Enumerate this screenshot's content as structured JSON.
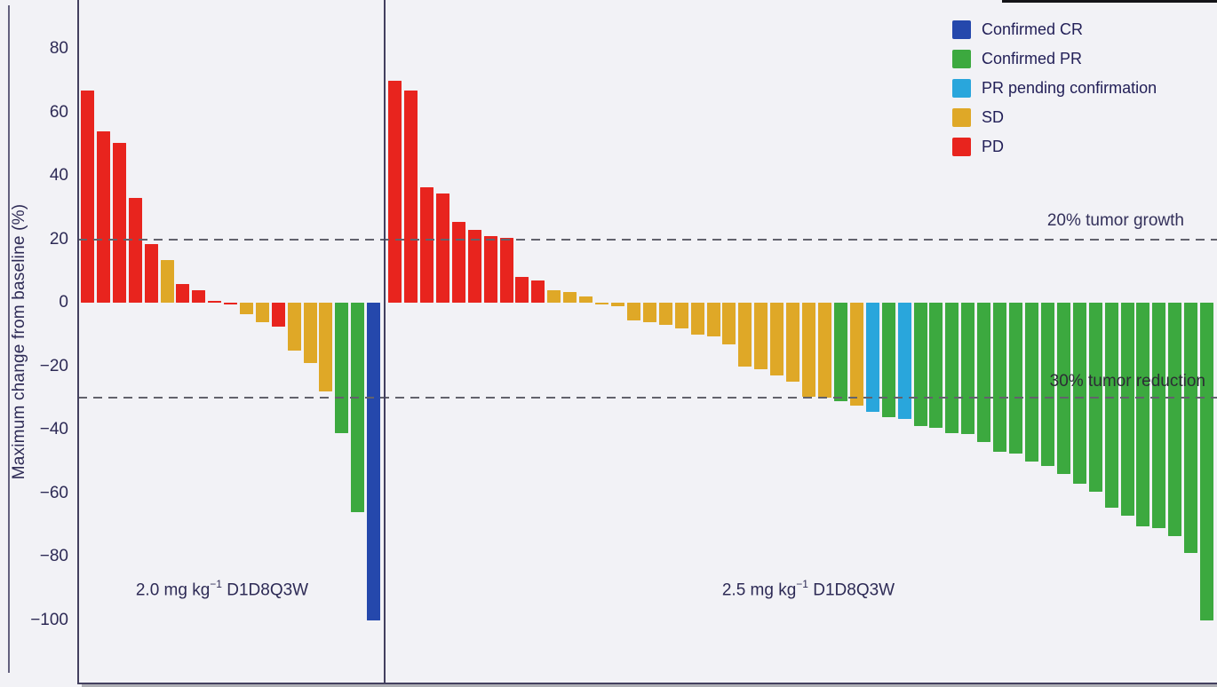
{
  "y_axis": {
    "label": "Maximum change from baseline (%)"
  },
  "annotations": {
    "growth_line_label": "20% tumor growth",
    "reduction_line_label": "30% tumor reduction"
  },
  "legend": {
    "items": [
      {
        "key": "CR",
        "label": "Confirmed CR",
        "color": "#2548ac"
      },
      {
        "key": "PR",
        "label": "Confirmed PR",
        "color": "#3ca93f"
      },
      {
        "key": "PRpending",
        "label": "PR pending confirmation",
        "color": "#29a6dc"
      },
      {
        "key": "SD",
        "label": "SD",
        "color": "#dfa827"
      },
      {
        "key": "PD",
        "label": "PD",
        "color": "#e8241e"
      }
    ]
  },
  "chart_data": {
    "type": "bar",
    "subtype": "waterfall-tumor-response",
    "title": "",
    "ylabel": "Maximum change from baseline (%)",
    "ylim": [
      -110,
      95
    ],
    "yticks": [
      80,
      60,
      40,
      20,
      0,
      -20,
      -40,
      -60,
      -80,
      -100
    ],
    "grid": false,
    "legend_position": "top-right",
    "reference_lines": [
      {
        "y": 20,
        "label": "20% tumor growth"
      },
      {
        "y": -30,
        "label": "30% tumor reduction"
      }
    ],
    "color_map": {
      "CR": "#2548ac",
      "PR": "#3ca93f",
      "PRpending": "#29a6dc",
      "SD": "#dfa827",
      "PD": "#e8241e"
    },
    "category_labels": {
      "CR": "Confirmed CR",
      "PR": "Confirmed PR",
      "PRpending": "PR pending confirmation",
      "SD": "SD",
      "PD": "PD"
    },
    "panels": [
      {
        "label": {
          "pre": "2.0 mg kg",
          "sup": "−1",
          "post": " D1D8Q3W"
        },
        "bars": [
          {
            "value": 67,
            "category": "PD"
          },
          {
            "value": 54,
            "category": "PD"
          },
          {
            "value": 50.5,
            "category": "PD"
          },
          {
            "value": 33,
            "category": "PD"
          },
          {
            "value": 18.5,
            "category": "PD"
          },
          {
            "value": 13.5,
            "category": "SD"
          },
          {
            "value": 6,
            "category": "PD"
          },
          {
            "value": 4,
            "category": "PD"
          },
          {
            "value": 0.5,
            "category": "PD"
          },
          {
            "value": -0.5,
            "category": "PD"
          },
          {
            "value": -3.5,
            "category": "SD"
          },
          {
            "value": -6,
            "category": "SD"
          },
          {
            "value": -7.5,
            "category": "PD"
          },
          {
            "value": -15,
            "category": "SD"
          },
          {
            "value": -19,
            "category": "SD"
          },
          {
            "value": -28,
            "category": "SD"
          },
          {
            "value": -41,
            "category": "PR"
          },
          {
            "value": -66,
            "category": "PR"
          },
          {
            "value": -100,
            "category": "CR"
          }
        ]
      },
      {
        "label": {
          "pre": "2.5 mg kg",
          "sup": "−1",
          "post": " D1D8Q3W"
        },
        "bars": [
          {
            "value": 70,
            "category": "PD"
          },
          {
            "value": 67,
            "category": "PD"
          },
          {
            "value": 36.5,
            "category": "PD"
          },
          {
            "value": 34.5,
            "category": "PD"
          },
          {
            "value": 25.5,
            "category": "PD"
          },
          {
            "value": 23,
            "category": "PD"
          },
          {
            "value": 21,
            "category": "PD"
          },
          {
            "value": 20.5,
            "category": "PD"
          },
          {
            "value": 8,
            "category": "PD"
          },
          {
            "value": 7,
            "category": "PD"
          },
          {
            "value": 4,
            "category": "SD"
          },
          {
            "value": 3.5,
            "category": "SD"
          },
          {
            "value": 2,
            "category": "SD"
          },
          {
            "value": -0.5,
            "category": "SD"
          },
          {
            "value": -1,
            "category": "SD"
          },
          {
            "value": -5.5,
            "category": "SD"
          },
          {
            "value": -6,
            "category": "SD"
          },
          {
            "value": -7,
            "category": "SD"
          },
          {
            "value": -8,
            "category": "SD"
          },
          {
            "value": -10,
            "category": "SD"
          },
          {
            "value": -10.5,
            "category": "SD"
          },
          {
            "value": -13,
            "category": "SD"
          },
          {
            "value": -20,
            "category": "SD"
          },
          {
            "value": -21,
            "category": "SD"
          },
          {
            "value": -23,
            "category": "SD"
          },
          {
            "value": -25,
            "category": "SD"
          },
          {
            "value": -29.5,
            "category": "SD"
          },
          {
            "value": -30,
            "category": "SD"
          },
          {
            "value": -31,
            "category": "PR"
          },
          {
            "value": -32.5,
            "category": "SD"
          },
          {
            "value": -34.5,
            "category": "PRpending"
          },
          {
            "value": -36,
            "category": "PR"
          },
          {
            "value": -36.5,
            "category": "PRpending"
          },
          {
            "value": -39,
            "category": "PR"
          },
          {
            "value": -39.5,
            "category": "PR"
          },
          {
            "value": -41,
            "category": "PR"
          },
          {
            "value": -41.5,
            "category": "PR"
          },
          {
            "value": -44,
            "category": "PR"
          },
          {
            "value": -47,
            "category": "PR"
          },
          {
            "value": -47.5,
            "category": "PR"
          },
          {
            "value": -50,
            "category": "PR"
          },
          {
            "value": -51.5,
            "category": "PR"
          },
          {
            "value": -54,
            "category": "PR"
          },
          {
            "value": -57,
            "category": "PR"
          },
          {
            "value": -59.5,
            "category": "PR"
          },
          {
            "value": -64.5,
            "category": "PR"
          },
          {
            "value": -67,
            "category": "PR"
          },
          {
            "value": -70.5,
            "category": "PR"
          },
          {
            "value": -71,
            "category": "PR"
          },
          {
            "value": -73.5,
            "category": "PR"
          },
          {
            "value": -79,
            "category": "PR"
          },
          {
            "value": -100,
            "category": "PR"
          }
        ]
      }
    ]
  }
}
